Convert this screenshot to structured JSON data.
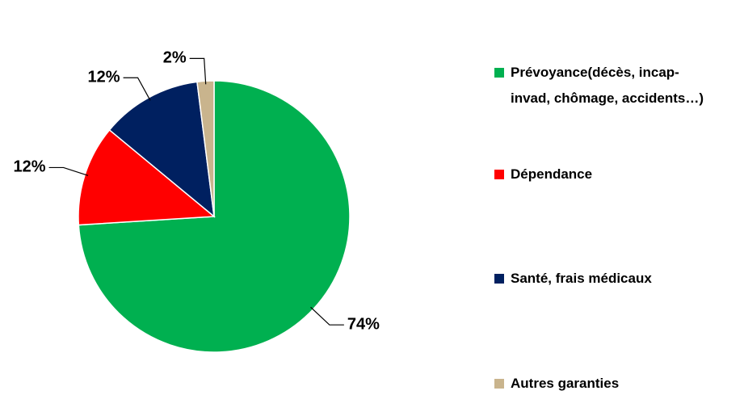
{
  "chart_data": {
    "type": "pie",
    "categories": [
      "Prévoyance(décès, incap-invad, chômage, accidents…)",
      "Dépendance",
      "Santé, frais médicaux",
      "Autres garanties"
    ],
    "values": [
      74,
      12,
      12,
      2
    ],
    "value_labels": [
      "74%",
      "12%",
      "12%",
      "2%"
    ],
    "colors": [
      "#00b050",
      "#ff0000",
      "#002060",
      "#c9b48d"
    ]
  }
}
